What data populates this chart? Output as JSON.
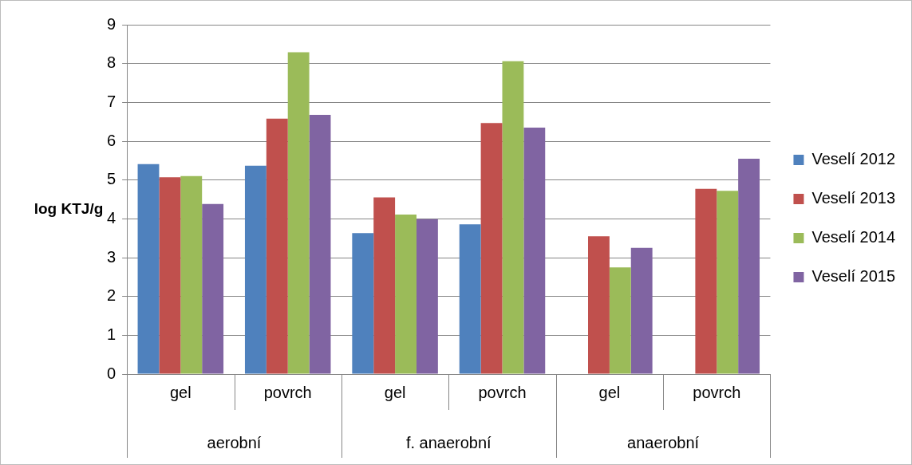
{
  "chart_data": {
    "type": "bar",
    "ylabel": "log KTJ/g",
    "categories": [
      "gel",
      "povrch",
      "gel",
      "povrch",
      "gel",
      "povrch"
    ],
    "annotations": [
      "aerobní",
      "f. anaerobní",
      "anaerobní"
    ],
    "series": [
      {
        "name": "Veselí 2012",
        "color": "#4f81bd",
        "values": [
          5.41,
          5.37,
          3.63,
          3.86,
          null,
          null
        ]
      },
      {
        "name": "Veselí 2013",
        "color": "#c0504d",
        "values": [
          5.07,
          6.58,
          4.55,
          6.47,
          3.55,
          4.77
        ]
      },
      {
        "name": "Veselí 2014",
        "color": "#9bbb59",
        "values": [
          5.1,
          8.29,
          4.11,
          8.06,
          2.75,
          4.72
        ]
      },
      {
        "name": "Veselí 2015",
        "color": "#8064a2",
        "values": [
          4.38,
          6.68,
          3.99,
          6.35,
          3.25,
          5.55
        ]
      }
    ],
    "ylim": [
      0,
      9
    ],
    "yticks": [
      0,
      1,
      2,
      3,
      4,
      5,
      6,
      7,
      8,
      9
    ],
    "grid": "y",
    "legend": "right"
  }
}
